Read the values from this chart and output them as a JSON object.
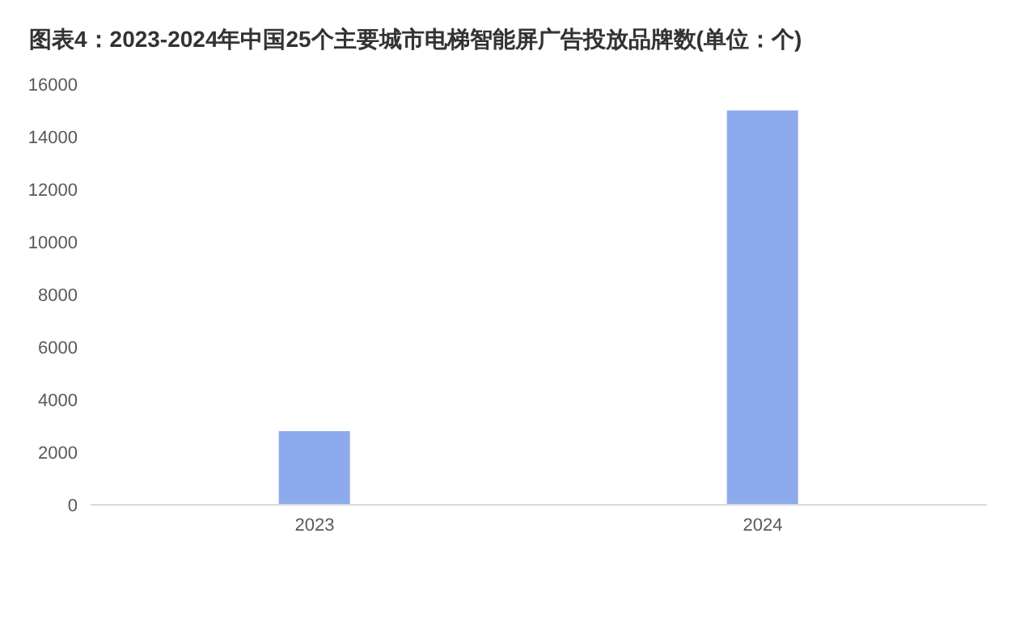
{
  "chart_data": {
    "type": "bar",
    "title": "图表4：2023-2024年中国25个主要城市电梯智能屏广告投放品牌数(单位：个)",
    "categories": [
      "2023",
      "2024"
    ],
    "values": [
      2800,
      15000
    ],
    "color": "#8eaaee",
    "ylim": [
      0,
      16000
    ],
    "yticks": [
      0,
      2000,
      4000,
      6000,
      8000,
      10000,
      12000,
      14000,
      16000
    ],
    "grid": false
  }
}
